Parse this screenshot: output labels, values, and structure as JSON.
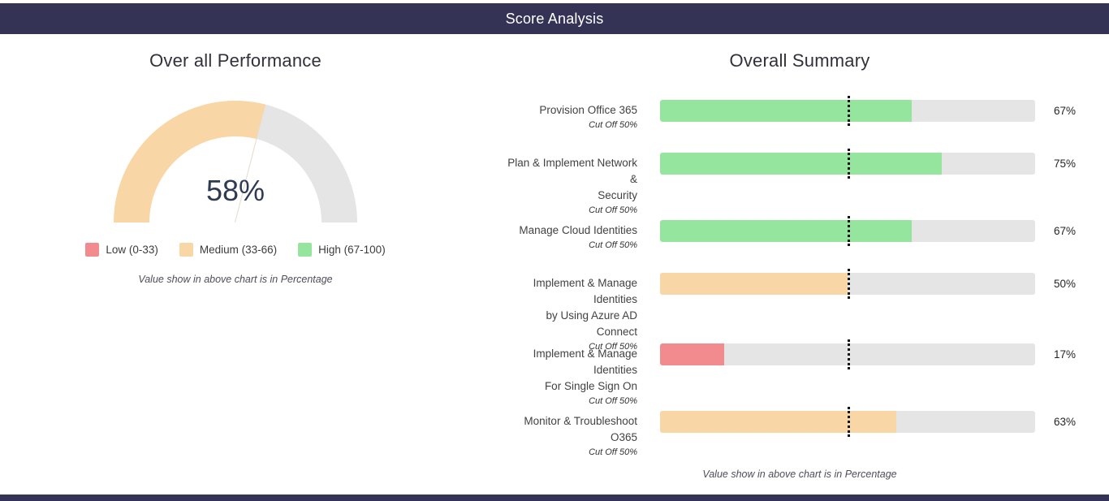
{
  "page": {
    "title": "Score Analysis"
  },
  "theme": {
    "header_bg": "#343355",
    "low": "#F28B8D",
    "medium": "#F8D6A6",
    "high": "#96E59E",
    "track": "#E5E5E5",
    "gauge_value_color": "#2F3B52"
  },
  "chart_data": [
    {
      "type": "gauge",
      "title": "Over all Performance",
      "value": 58,
      "display_value": "58%",
      "min": 0,
      "max": 100,
      "fill_band": "medium",
      "legend": [
        {
          "label": "Low (0-33)",
          "color": "#F28B8D"
        },
        {
          "label": "Medium (33-66)",
          "color": "#F8D6A6"
        },
        {
          "label": "High (67-100)",
          "color": "#96E59E"
        }
      ],
      "note": "Value show in above chart is in Percentage"
    },
    {
      "type": "bar",
      "orientation": "horizontal",
      "title": "Overall Summary",
      "xlim": [
        0,
        100
      ],
      "cutoff_percent": 50,
      "rows": [
        {
          "label_lines": [
            "Provision Office 365"
          ],
          "cutoff_label": "Cut Off 50%",
          "value": 67,
          "display_value": "67%",
          "color": "#96E59E"
        },
        {
          "label_lines": [
            "Plan & Implement Network &",
            "Security"
          ],
          "cutoff_label": "Cut Off 50%",
          "value": 75,
          "display_value": "75%",
          "color": "#96E59E"
        },
        {
          "label_lines": [
            "Manage Cloud Identities"
          ],
          "cutoff_label": "Cut Off 50%",
          "value": 67,
          "display_value": "67%",
          "color": "#96E59E"
        },
        {
          "label_lines": [
            "Implement & Manage Identities",
            "by Using Azure AD Connect"
          ],
          "cutoff_label": "Cut Off 50%",
          "value": 50,
          "display_value": "50%",
          "color": "#F8D6A6"
        },
        {
          "label_lines": [
            "Implement & Manage Identities",
            "For Single Sign On"
          ],
          "cutoff_label": "Cut Off 50%",
          "value": 17,
          "display_value": "17%",
          "color": "#F28B8D"
        },
        {
          "label_lines": [
            "Monitor & Troubleshoot O365"
          ],
          "cutoff_label": "Cut Off 50%",
          "value": 63,
          "display_value": "63%",
          "color": "#F8D6A6"
        }
      ],
      "note": "Value show in above chart is in Percentage"
    }
  ]
}
